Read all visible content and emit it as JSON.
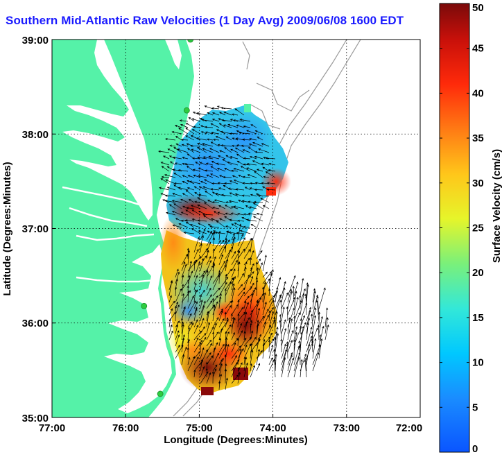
{
  "title": "Southern Mid-Atlantic Raw Velocities (1 Day Avg) 2009/06/08 1600 EDT",
  "map": {
    "xlabel": "Longitude (Degrees:Minutes)",
    "ylabel": "Latitude (Degrees:Minutes)",
    "x_ticks": [
      "77:00",
      "76:00",
      "75:00",
      "74:00",
      "73:00",
      "72:00"
    ],
    "y_ticks": [
      "39:00",
      "38:00",
      "37:00",
      "36:00",
      "35:00"
    ],
    "lon_range_west": [
      77,
      72
    ],
    "lat_range": [
      35,
      39
    ],
    "grid": "dotted"
  },
  "colorbar": {
    "label": "Surface Velocity (cm/s)",
    "range": [
      0,
      50
    ],
    "ticks": [
      "0",
      "5",
      "10",
      "15",
      "20",
      "25",
      "30",
      "35",
      "40",
      "45",
      "50"
    ],
    "colormap": "jet"
  },
  "colors": {
    "land": "#55f2a8",
    "title": "#1a1aff",
    "station": "#2ecc40",
    "bathymetry": "#9a9a9a"
  },
  "stations": [
    {
      "lat": 39.0,
      "lon": 75.12
    },
    {
      "lat": 38.25,
      "lon": 75.17
    },
    {
      "lat": 36.18,
      "lon": 75.75
    },
    {
      "lat": 35.25,
      "lon": 75.53
    }
  ]
}
